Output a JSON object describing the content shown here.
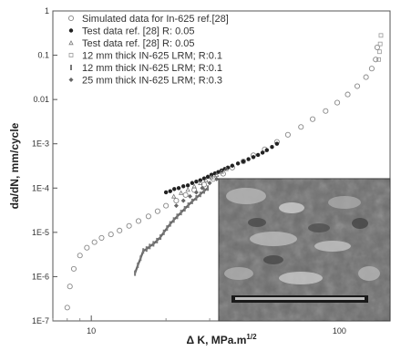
{
  "chart_data": {
    "type": "scatter",
    "xlabel": "Δ K, MPa.m",
    "xlabel_superscript": "1/2",
    "ylabel": "da/dN, mm/cycle",
    "xscale": "log",
    "yscale": "log",
    "xlim": [
      7,
      160
    ],
    "ylim": [
      1e-07,
      1
    ],
    "xticks": [
      10,
      100
    ],
    "xtick_labels": [
      "10",
      "100"
    ],
    "yticks": [
      1e-07,
      1e-06,
      1e-05,
      0.0001,
      0.001,
      0.01,
      0.1,
      1
    ],
    "ytick_labels": [
      "1E-7",
      "1E-6",
      "1E-5",
      "1E-4",
      "1E-3",
      "0.01",
      "0.1",
      "1"
    ],
    "legend_position": "top-left",
    "legend": [
      {
        "label": "Simulated data for In-625 ref.[28]",
        "marker": "open-circle"
      },
      {
        "label": "Test data ref. [28] R: 0.05",
        "marker": "filled-circle"
      },
      {
        "label": "Test data ref. [28] R: 0.05",
        "marker": "small-triangle"
      },
      {
        "label": "12 mm thick IN-625 LRM; R:0.1",
        "marker": "open-square"
      },
      {
        "label": "12 mm thick IN-625 LRM; R:0.1",
        "marker": "small-bar"
      },
      {
        "label": "25 mm thick IN-625 LRM; R:0.3",
        "marker": "small-diamond"
      }
    ],
    "series": [
      {
        "name": "Simulated data for In-625 ref.[28]",
        "marker": "open-circle",
        "x": [
          8.0,
          8.2,
          8.5,
          9.0,
          9.6,
          10.3,
          11.0,
          12.0,
          13.0,
          14.2,
          15.5,
          17.0,
          18.5,
          20.0,
          22.0,
          24.0,
          26.0,
          28.5,
          31.0,
          34.0,
          37.0,
          41.0,
          45.0,
          50.0,
          56.0,
          62.0,
          70.0,
          78.0,
          88.0,
          98.0,
          108.0,
          118.0,
          128.0,
          135.0,
          140.0,
          142.0
        ],
        "y": [
          2e-07,
          6e-07,
          1.5e-06,
          3e-06,
          4.5e-06,
          6e-06,
          7.5e-06,
          9e-06,
          1.1e-05,
          1.4e-05,
          1.8e-05,
          2.3e-05,
          3e-05,
          4e-05,
          5.2e-05,
          7e-05,
          9e-05,
          0.00012,
          0.00016,
          0.00021,
          0.00029,
          0.0004,
          0.00055,
          0.00075,
          0.0011,
          0.0016,
          0.0024,
          0.0036,
          0.0055,
          0.0085,
          0.013,
          0.02,
          0.032,
          0.05,
          0.08,
          0.15
        ]
      },
      {
        "name": "Test data ref. [28] R: 0.05",
        "marker": "filled-circle",
        "x": [
          20.0,
          20.8,
          21.6,
          22.5,
          23.5,
          24.5,
          25.5,
          26.5,
          27.5,
          28.5,
          29.5,
          30.5,
          31.5,
          32.5,
          33.5,
          34.5,
          35.5,
          37.0,
          39.0,
          41.0,
          43.0,
          45.0,
          47.0,
          49.0,
          51.0,
          53.5,
          56.0
        ],
        "y": [
          8e-05,
          8.5e-05,
          9.5e-05,
          0.0001,
          0.00011,
          0.000115,
          0.00013,
          0.00014,
          0.00015,
          0.000165,
          0.00018,
          0.0002,
          0.000215,
          0.00023,
          0.00025,
          0.00027,
          0.00029,
          0.00032,
          0.00036,
          0.0004,
          0.00045,
          0.0005,
          0.00056,
          0.00063,
          0.00072,
          0.00085,
          0.001
        ]
      },
      {
        "name": "Test data ref. [28] R: 0.05",
        "marker": "small-triangle",
        "x": [
          21.5,
          23.0,
          24.5,
          26.0,
          27.5,
          29.0,
          30.5,
          32.0,
          33.5,
          35.0
        ],
        "y": [
          6.5e-05,
          7.8e-05,
          9.2e-05,
          0.00011,
          0.00013,
          0.00015,
          0.000175,
          0.0002,
          0.000235,
          0.00027
        ]
      },
      {
        "name": "12 mm thick IN-625 LRM; R:0.1",
        "marker": "open-square",
        "x": [
          144.0,
          145.0,
          146.0,
          147.0
        ],
        "y": [
          0.08,
          0.12,
          0.18,
          0.28
        ]
      },
      {
        "name": "12 mm thick IN-625 LRM; R:0.1",
        "marker": "small-bar",
        "x": [
          15.0,
          15.4,
          15.8,
          16.2,
          16.7,
          17.2,
          17.8,
          18.4,
          19.0,
          19.6,
          20.2,
          20.8,
          21.5,
          22.2,
          23.0,
          23.8,
          24.6,
          25.5,
          26.5,
          27.5,
          28.5,
          29.5
        ],
        "y": [
          1.2e-06,
          1.8e-06,
          2.6e-06,
          3.8e-06,
          4.2e-06,
          4.8e-06,
          5.5e-06,
          6.5e-06,
          7.8e-06,
          1e-05,
          1.25e-05,
          1.55e-05,
          1.9e-05,
          2.3e-05,
          2.8e-05,
          3.4e-05,
          4.1e-05,
          5e-05,
          6e-05,
          7.2e-05,
          8.6e-05,
          0.0001
        ]
      },
      {
        "name": "25 mm thick IN-625 LRM; R:0.3",
        "marker": "small-diamond",
        "x": [
          22.0,
          23.5,
          25.0,
          26.5,
          28.0,
          30.0,
          32.0
        ],
        "y": [
          4e-05,
          5.2e-05,
          6.5e-05,
          8e-05,
          0.0001,
          0.00013,
          0.00016
        ]
      }
    ],
    "inset": {
      "type": "micrograph",
      "scale_bar_present": true
    }
  }
}
